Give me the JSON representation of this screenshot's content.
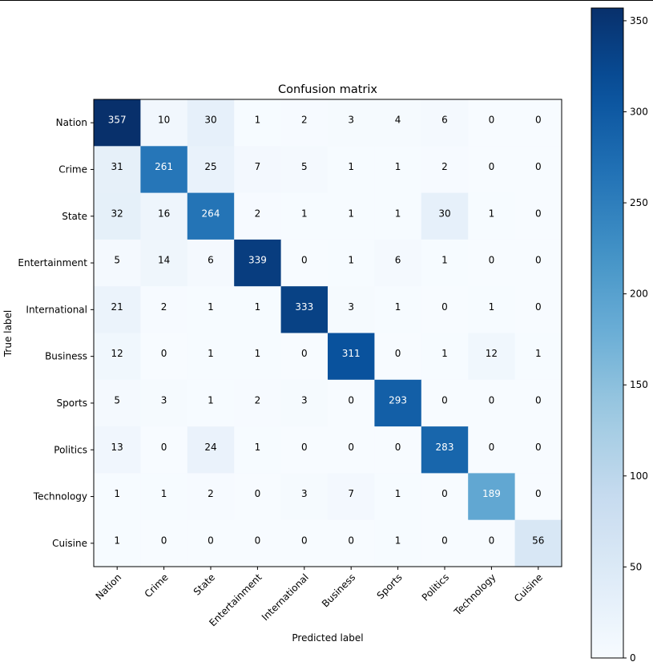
{
  "chart_data": {
    "type": "heatmap",
    "title": "Confusion matrix",
    "xlabel": "Predicted label",
    "ylabel": "True label",
    "row_labels": [
      "Nation",
      "Crime",
      "State",
      "Entertainment",
      "International",
      "Business",
      "Sports",
      "Politics",
      "Technology",
      "Cuisine"
    ],
    "col_labels": [
      "Nation",
      "Crime",
      "State",
      "Entertainment",
      "International",
      "Business",
      "Sports",
      "Politics",
      "Technology",
      "Cuisine"
    ],
    "matrix": [
      [
        357,
        10,
        30,
        1,
        2,
        3,
        4,
        6,
        0,
        0
      ],
      [
        31,
        261,
        25,
        7,
        5,
        1,
        1,
        2,
        0,
        0
      ],
      [
        32,
        16,
        264,
        2,
        1,
        1,
        1,
        30,
        1,
        0
      ],
      [
        5,
        14,
        6,
        339,
        0,
        1,
        6,
        1,
        0,
        0
      ],
      [
        21,
        2,
        1,
        1,
        333,
        3,
        1,
        0,
        1,
        0
      ],
      [
        12,
        0,
        1,
        1,
        0,
        311,
        0,
        1,
        12,
        1
      ],
      [
        5,
        3,
        1,
        2,
        3,
        0,
        293,
        0,
        0,
        0
      ],
      [
        13,
        0,
        24,
        1,
        0,
        0,
        0,
        283,
        0,
        0
      ],
      [
        1,
        1,
        2,
        0,
        3,
        7,
        1,
        0,
        189,
        0
      ],
      [
        1,
        0,
        0,
        0,
        0,
        0,
        1,
        0,
        0,
        56
      ]
    ],
    "colormap": "Blues",
    "value_range": [
      0,
      357
    ],
    "colorbar_ticks": [
      0,
      50,
      100,
      150,
      200,
      250,
      300,
      350
    ]
  }
}
